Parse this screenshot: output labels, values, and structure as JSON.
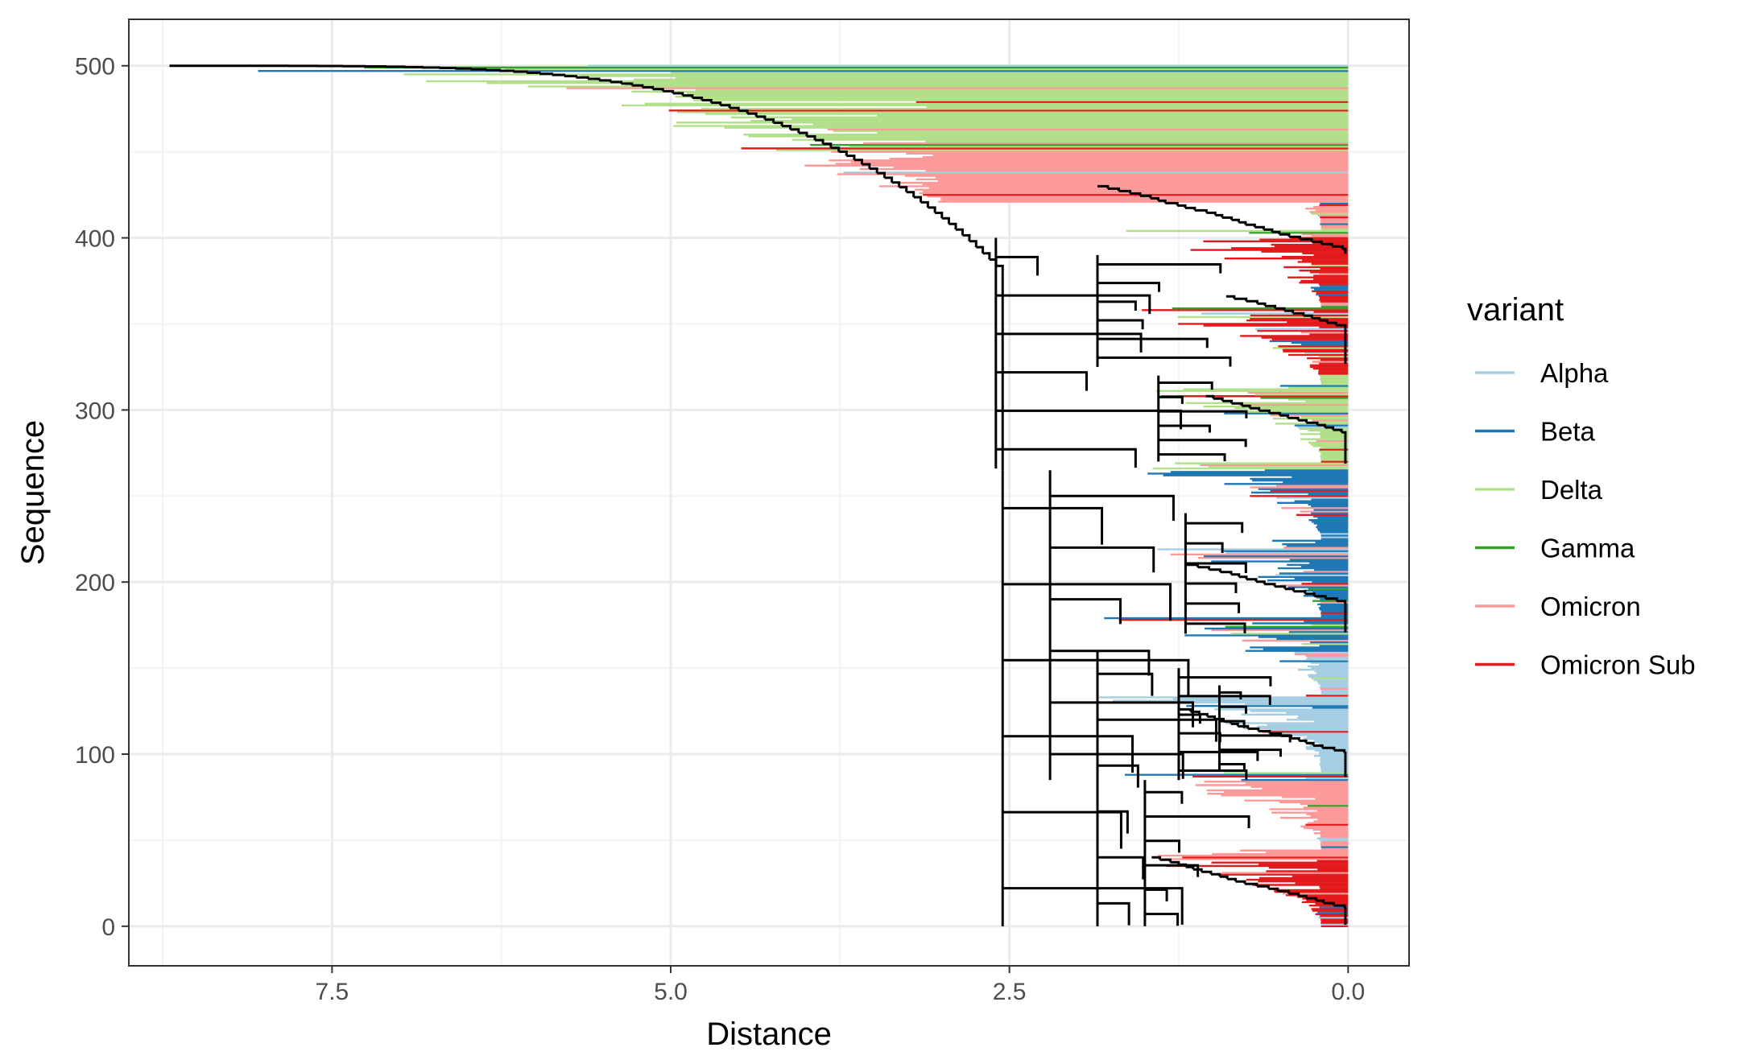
{
  "chart_data": {
    "type": "line",
    "subtype": "dendrogram",
    "title": "",
    "xlabel": "Distance",
    "ylabel": "Sequence",
    "x_reversed": true,
    "xlim": [
      9.0,
      -0.45
    ],
    "ylim": [
      -23,
      527
    ],
    "x_ticks": [
      7.5,
      5.0,
      2.5,
      0.0
    ],
    "x_tick_labels": [
      "7.5",
      "5.0",
      "2.5",
      "0.0"
    ],
    "y_ticks": [
      0,
      100,
      200,
      300,
      400,
      500
    ],
    "y_tick_labels": [
      "0",
      "100",
      "200",
      "300",
      "400",
      "500"
    ],
    "grid": true,
    "legend": {
      "title": "variant",
      "placement": "right",
      "entries": [
        {
          "name": "Alpha",
          "color": "#a6cee3"
        },
        {
          "name": "Beta",
          "color": "#1f78b4"
        },
        {
          "name": "Delta",
          "color": "#b2df8a"
        },
        {
          "name": "Gamma",
          "color": "#33a02c"
        },
        {
          "name": "Omicron",
          "color": "#fb9a99"
        },
        {
          "name": "Omicron Sub",
          "color": "#e31a1c"
        }
      ]
    },
    "clade_blocks": [
      {
        "variant": "Omicron Sub",
        "from": 0,
        "to": 40
      },
      {
        "variant": "Omicron",
        "from": 41,
        "to": 84
      },
      {
        "variant": "Alpha",
        "from": 85,
        "to": 159
      },
      {
        "variant": "Beta",
        "from": 160,
        "to": 265
      },
      {
        "variant": "Delta",
        "from": 266,
        "to": 320
      },
      {
        "variant": "Omicron Sub",
        "from": 321,
        "to": 400
      },
      {
        "variant": "Omicron",
        "from": 401,
        "to": 450
      },
      {
        "variant": "Delta",
        "from": 451,
        "to": 500
      }
    ],
    "leaf_mix": [
      {
        "variant": "Delta",
        "share": 0.18
      },
      {
        "variant": "Omicron",
        "share": 0.26
      },
      {
        "variant": "Omicron Sub",
        "share": 0.18
      },
      {
        "variant": "Alpha",
        "share": 0.14
      },
      {
        "variant": "Beta",
        "share": 0.17
      },
      {
        "variant": "Gamma",
        "share": 0.07
      }
    ],
    "leaf_count": 501,
    "root_distance": 8.7,
    "clade_nodes": [
      {
        "distance": 2.55,
        "y_low": 0,
        "y_high": 265
      },
      {
        "distance": 2.6,
        "y_low": 266,
        "y_high": 400
      },
      {
        "distance": 2.2,
        "y_low": 85,
        "y_high": 265
      },
      {
        "distance": 1.85,
        "y_low": 0,
        "y_high": 160
      },
      {
        "distance": 1.85,
        "y_low": 325,
        "y_high": 390
      },
      {
        "distance": 1.4,
        "y_low": 270,
        "y_high": 320
      },
      {
        "distance": 1.5,
        "y_low": 0,
        "y_high": 85
      },
      {
        "distance": 1.25,
        "y_low": 85,
        "y_high": 150
      },
      {
        "distance": 1.2,
        "y_low": 170,
        "y_high": 240
      },
      {
        "distance": 0.95,
        "y_low": 90,
        "y_high": 140
      }
    ]
  }
}
